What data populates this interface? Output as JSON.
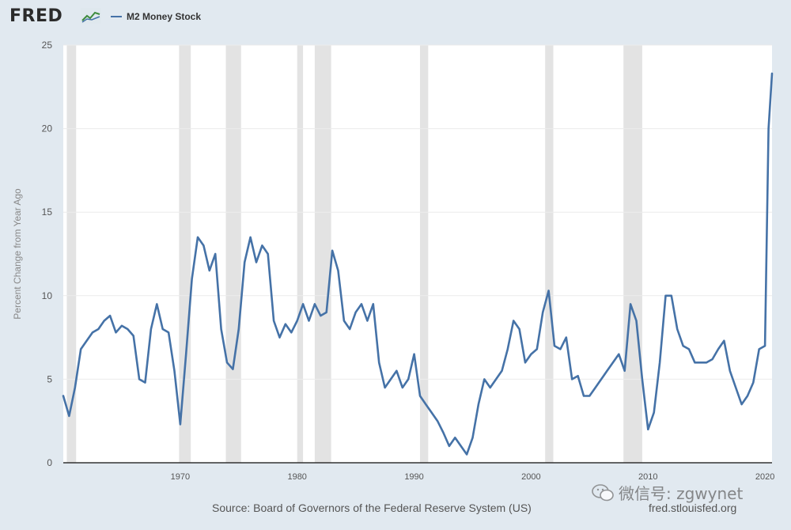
{
  "header": {
    "logo_text": "FRED",
    "logo_icon": "chart-line-icon",
    "legend_label": "M2 Money Stock",
    "legend_color": "#4572a7"
  },
  "footer": {
    "source_text": "Source: Board of Governors of the Federal Reserve System (US)",
    "site_text": "fred.stlouisfed.org"
  },
  "watermark": {
    "text": "微信号: zgwynet",
    "icon": "wechat-icon"
  },
  "chart_data": {
    "type": "line",
    "title": "",
    "xlabel": "",
    "ylabel": "Percent Change from Year Ago",
    "xlim": [
      1960,
      2020.6
    ],
    "ylim": [
      0,
      25
    ],
    "x_ticks": [
      1970,
      1980,
      1990,
      2000,
      2010,
      2020
    ],
    "y_ticks": [
      0,
      5,
      10,
      15,
      20,
      25
    ],
    "grid": "horizontal",
    "line_color": "#4572a7",
    "recession_color": "#e3e3e3",
    "recessions": [
      [
        1960.3,
        1961.1
      ],
      [
        1969.9,
        1970.9
      ],
      [
        1973.9,
        1975.2
      ],
      [
        1980.0,
        1980.5
      ],
      [
        1981.5,
        1982.9
      ],
      [
        1990.5,
        1991.2
      ],
      [
        2001.2,
        2001.9
      ],
      [
        2007.9,
        2009.5
      ]
    ],
    "series": [
      {
        "x": [
          1960.0,
          1960.5,
          1961.0,
          1961.5,
          1962.0,
          1962.5,
          1963.0,
          1963.5,
          1964.0,
          1964.5,
          1965.0,
          1965.5,
          1966.0,
          1966.5,
          1967.0,
          1967.5,
          1968.0,
          1968.5,
          1969.0,
          1969.5,
          1970.0,
          1970.5,
          1971.0,
          1971.5,
          1972.0,
          1972.5,
          1973.0,
          1973.5,
          1974.0,
          1974.5,
          1975.0,
          1975.5,
          1976.0,
          1976.5,
          1977.0,
          1977.5,
          1978.0,
          1978.5,
          1979.0,
          1979.5,
          1980.0,
          1980.5,
          1981.0,
          1981.5,
          1982.0,
          1982.5,
          1983.0,
          1983.5,
          1984.0,
          1984.5,
          1985.0,
          1985.5,
          1986.0,
          1986.5,
          1987.0,
          1987.5,
          1988.0,
          1988.5,
          1989.0,
          1989.5,
          1990.0,
          1990.5,
          1991.0,
          1991.5,
          1992.0,
          1992.5,
          1993.0,
          1993.5,
          1994.0,
          1994.5,
          1995.0,
          1995.5,
          1996.0,
          1996.5,
          1997.0,
          1997.5,
          1998.0,
          1998.5,
          1999.0,
          1999.5,
          2000.0,
          2000.5,
          2001.0,
          2001.5,
          2002.0,
          2002.5,
          2003.0,
          2003.5,
          2004.0,
          2004.5,
          2005.0,
          2005.5,
          2006.0,
          2006.5,
          2007.0,
          2007.5,
          2008.0,
          2008.5,
          2009.0,
          2009.5,
          2010.0,
          2010.5,
          2011.0,
          2011.5,
          2012.0,
          2012.5,
          2013.0,
          2013.5,
          2014.0,
          2014.5,
          2015.0,
          2015.5,
          2016.0,
          2016.5,
          2017.0,
          2017.5,
          2018.0,
          2018.5,
          2019.0,
          2019.5,
          2020.0,
          2020.3,
          2020.6
        ],
        "y": [
          4.0,
          2.8,
          4.5,
          6.8,
          7.3,
          7.8,
          8.0,
          8.5,
          8.8,
          7.8,
          8.2,
          8.0,
          7.6,
          5.0,
          4.8,
          8.0,
          9.5,
          8.0,
          7.8,
          5.5,
          2.3,
          6.5,
          11.0,
          13.5,
          13.0,
          11.5,
          12.5,
          8.0,
          6.0,
          5.6,
          8.0,
          12.0,
          13.5,
          12.0,
          13.0,
          12.5,
          8.5,
          7.5,
          8.3,
          7.8,
          8.5,
          9.5,
          8.5,
          9.5,
          8.8,
          9.0,
          12.7,
          11.5,
          8.5,
          8.0,
          9.0,
          9.5,
          8.5,
          9.5,
          6.0,
          4.5,
          5.0,
          5.5,
          4.5,
          5.0,
          6.5,
          4.0,
          3.5,
          3.0,
          2.5,
          1.8,
          1.0,
          1.5,
          1.0,
          0.5,
          1.5,
          3.5,
          5.0,
          4.5,
          5.0,
          5.5,
          6.8,
          8.5,
          8.0,
          6.0,
          6.5,
          6.8,
          9.0,
          10.3,
          7.0,
          6.8,
          7.5,
          5.0,
          5.2,
          4.0,
          4.0,
          4.5,
          5.0,
          5.5,
          6.0,
          6.5,
          5.5,
          9.5,
          8.5,
          5.0,
          2.0,
          3.0,
          6.0,
          10.0,
          10.0,
          8.0,
          7.0,
          6.8,
          6.0,
          6.0,
          6.0,
          6.2,
          6.8,
          7.3,
          5.5,
          4.5,
          3.5,
          4.0,
          4.8,
          6.8,
          7.0,
          20.0,
          23.3
        ]
      }
    ]
  }
}
